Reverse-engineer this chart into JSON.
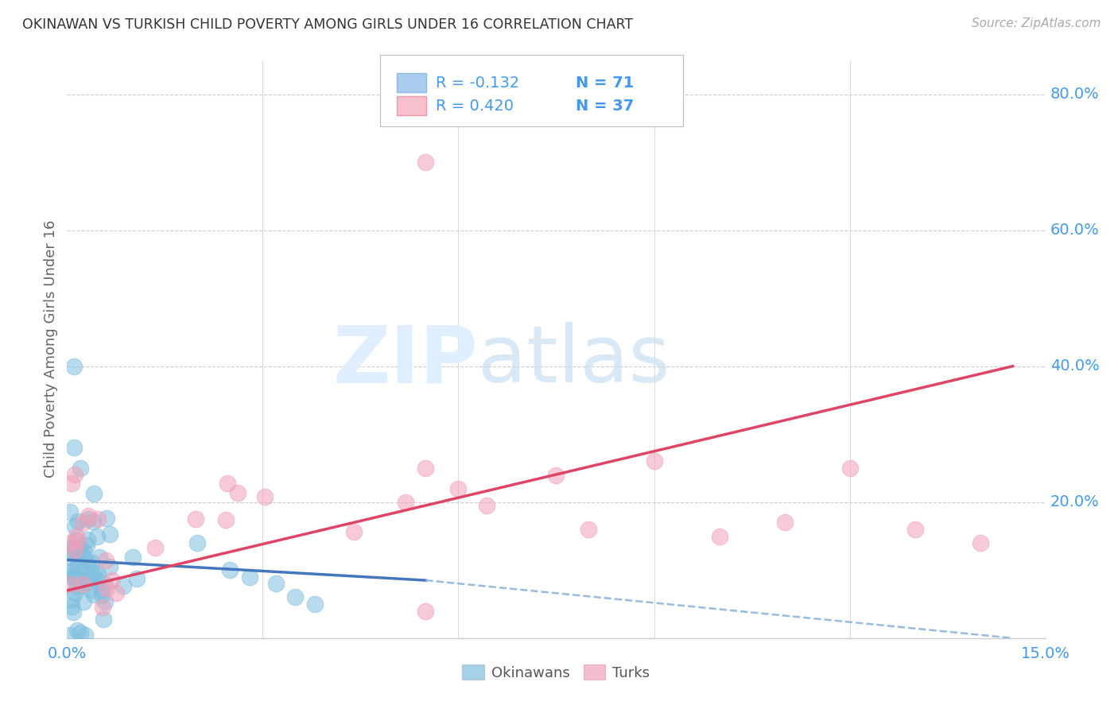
{
  "title": "OKINAWAN VS TURKISH CHILD POVERTY AMONG GIRLS UNDER 16 CORRELATION CHART",
  "source": "Source: ZipAtlas.com",
  "ylabel": "Child Poverty Among Girls Under 16",
  "watermark_zip": "ZIP",
  "watermark_atlas": "atlas",
  "xlim": [
    0.0,
    0.15
  ],
  "ylim": [
    0.0,
    0.85
  ],
  "ytick_labels_right": [
    "80.0%",
    "60.0%",
    "40.0%",
    "20.0%"
  ],
  "ytick_positions_right": [
    0.8,
    0.6,
    0.4,
    0.2
  ],
  "legend_label1": "Okinawans",
  "legend_label2": "Turks",
  "color_blue": "#7fbfdf",
  "color_pink": "#f0a0b8",
  "color_line_blue_solid": "#4477bb",
  "color_line_blue_dash": "#99bbdd",
  "color_line_pink": "#dd4466",
  "background_color": "#ffffff",
  "grid_color": "#cccccc",
  "title_color": "#333333",
  "right_tick_color": "#4499ee",
  "bottom_tick_color": "#4499ee",
  "text_color_blue": "#4499ee",
  "text_color_dark": "#333333"
}
